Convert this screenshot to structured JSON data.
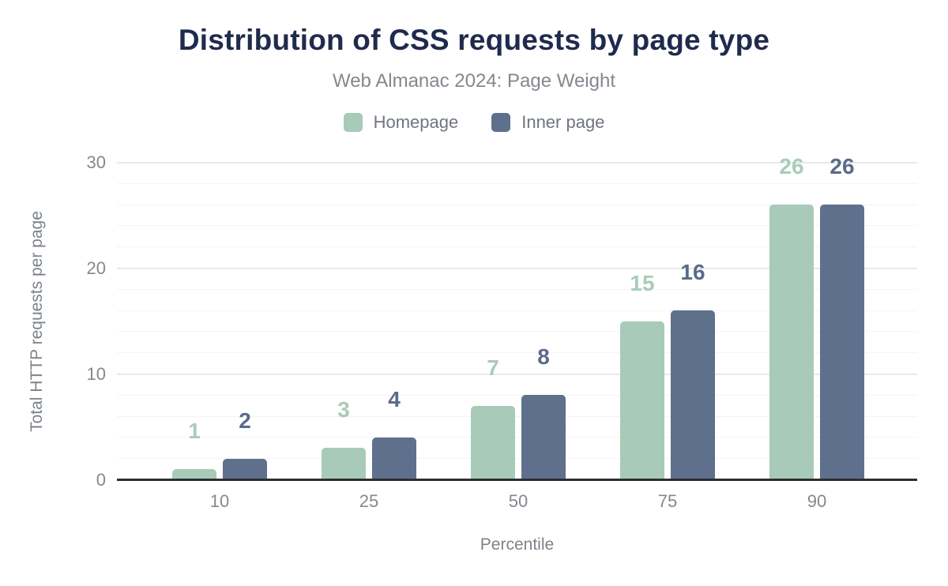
{
  "title": "Distribution of CSS requests by page type",
  "subtitle": "Web Almanac 2024: Page Weight",
  "legend": {
    "items": [
      {
        "label": "Homepage",
        "color": "#a8cab8"
      },
      {
        "label": "Inner page",
        "color": "#5f708c"
      }
    ]
  },
  "chart_data": {
    "type": "bar",
    "title": "Distribution of CSS requests by page type",
    "subtitle": "Web Almanac 2024: Page Weight",
    "categories": [
      "10",
      "25",
      "50",
      "75",
      "90"
    ],
    "series": [
      {
        "name": "Homepage",
        "color": "#a8cab8",
        "label_color": "#a9ccba",
        "values": [
          1,
          3,
          7,
          15,
          26
        ]
      },
      {
        "name": "Inner page",
        "color": "#5f708c",
        "label_color": "#5a6b8a",
        "values": [
          2,
          4,
          8,
          16,
          26
        ]
      }
    ],
    "xlabel": "Percentile",
    "ylabel": "Total HTTP requests per page",
    "ylim": [
      0,
      30
    ],
    "yticks": [
      0,
      10,
      20,
      30
    ],
    "minor_grid_step": 2,
    "grid": true,
    "value_labels": true,
    "legend_position": "top"
  },
  "colors": {
    "title_text": "#1f2b4d",
    "subtitle_text": "#83888f",
    "legend_text": "#70767f",
    "tick_text": "#83888f",
    "axis_title_text": "#7d838b",
    "axis_line": "#2c2e32",
    "major_grid": "#e9e9e9",
    "minor_grid": "#f6f4f2",
    "background": "#ffffff"
  }
}
